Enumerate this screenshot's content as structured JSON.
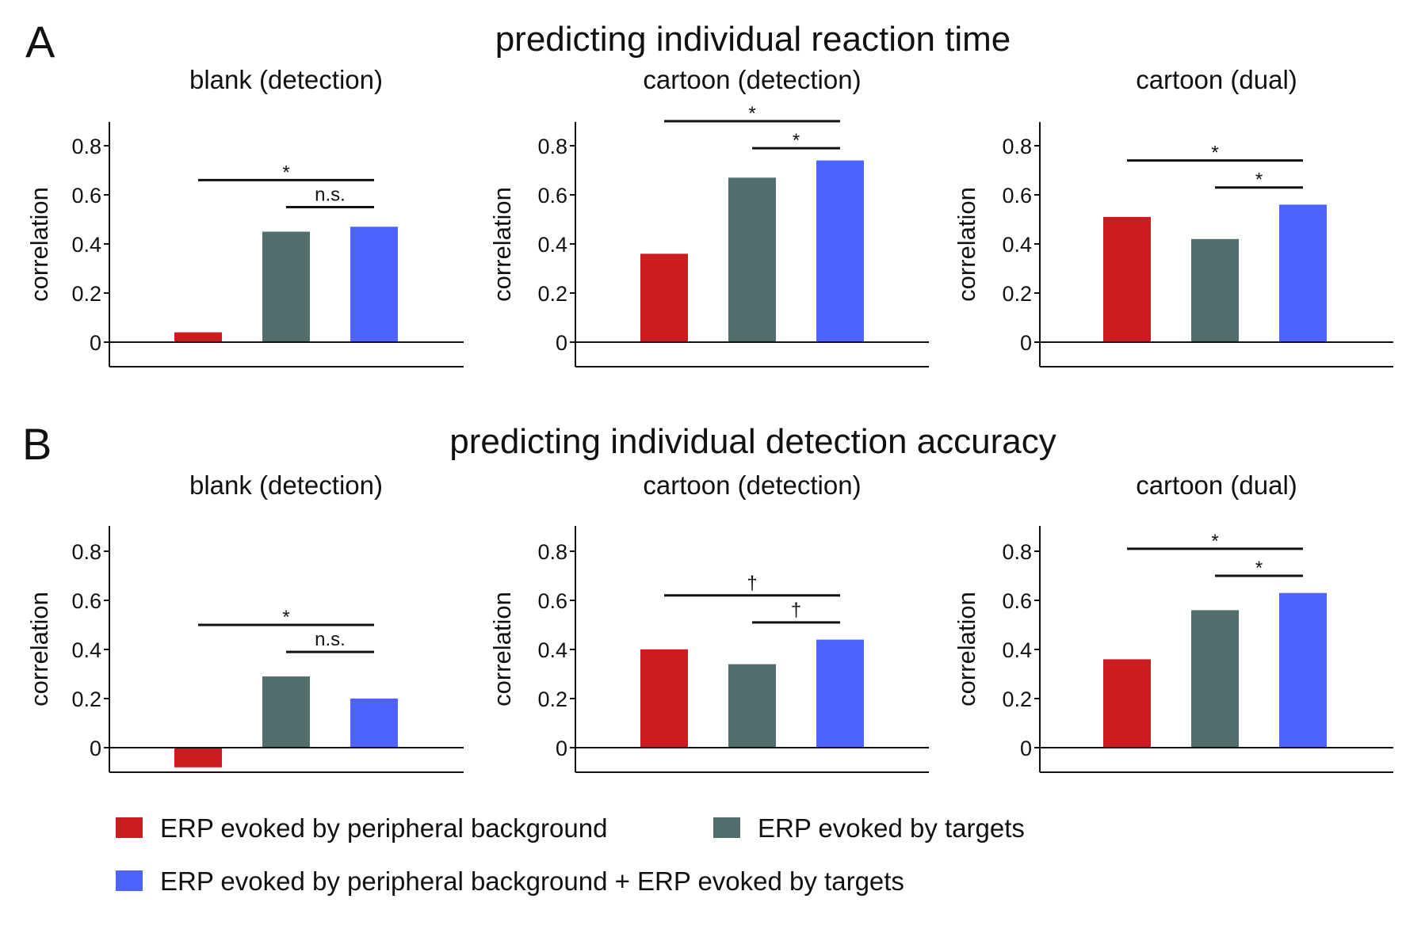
{
  "colors": {
    "peripheral": "#cc1b1e",
    "targets": "#526e6c",
    "combined": "#4d63fb",
    "axis": "#111111"
  },
  "rows": [
    {
      "letter": "A",
      "title": "predicting individual reaction time"
    },
    {
      "letter": "B",
      "title": "predicting individual detection accuracy"
    }
  ],
  "legend": [
    {
      "label": "ERP evoked by peripheral background",
      "color": "#cc1b1e"
    },
    {
      "label": "ERP evoked by targets",
      "color": "#526e6c"
    },
    {
      "label": "ERP evoked by peripheral background + ERP evoked by targets",
      "color": "#4d63fb"
    }
  ],
  "chart_data": [
    {
      "type": "bar",
      "row": 0,
      "title": "blank (detection)",
      "ylabel": "correlation",
      "ylim": [
        -0.1,
        0.9
      ],
      "yticks": [
        "0",
        "0.2",
        "0.4",
        "0.6",
        "0.8"
      ],
      "values": [
        0.04,
        0.45,
        0.47
      ],
      "significance": [
        {
          "from": 0,
          "to": 2,
          "label": "*",
          "y": 0.66
        },
        {
          "from": 1,
          "to": 2,
          "label": "n.s.",
          "y": 0.55
        }
      ]
    },
    {
      "type": "bar",
      "row": 0,
      "title": "cartoon (detection)",
      "ylabel": "correlation",
      "ylim": [
        -0.1,
        0.9
      ],
      "yticks": [
        "0",
        "0.2",
        "0.4",
        "0.6",
        "0.8"
      ],
      "values": [
        0.36,
        0.67,
        0.74
      ],
      "significance": [
        {
          "from": 0,
          "to": 2,
          "label": "*",
          "y": 0.9
        },
        {
          "from": 1,
          "to": 2,
          "label": "*",
          "y": 0.79
        }
      ]
    },
    {
      "type": "bar",
      "row": 0,
      "title": "cartoon (dual)",
      "ylabel": "correlation",
      "ylim": [
        -0.1,
        0.9
      ],
      "yticks": [
        "0",
        "0.2",
        "0.4",
        "0.6",
        "0.8"
      ],
      "values": [
        0.51,
        0.42,
        0.56
      ],
      "significance": [
        {
          "from": 0,
          "to": 2,
          "label": "*",
          "y": 0.74
        },
        {
          "from": 1,
          "to": 2,
          "label": "*",
          "y": 0.63
        }
      ]
    },
    {
      "type": "bar",
      "row": 1,
      "title": "blank (detection)",
      "ylabel": "correlation",
      "ylim": [
        -0.1,
        0.9
      ],
      "yticks": [
        "0",
        "0.2",
        "0.4",
        "0.6",
        "0.8"
      ],
      "values": [
        -0.08,
        0.29,
        0.2
      ],
      "significance": [
        {
          "from": 0,
          "to": 2,
          "label": "*",
          "y": 0.5
        },
        {
          "from": 1,
          "to": 2,
          "label": "n.s.",
          "y": 0.39
        }
      ]
    },
    {
      "type": "bar",
      "row": 1,
      "title": "cartoon (detection)",
      "ylabel": "correlation",
      "ylim": [
        -0.1,
        0.9
      ],
      "yticks": [
        "0",
        "0.2",
        "0.4",
        "0.6",
        "0.8"
      ],
      "values": [
        0.4,
        0.34,
        0.44
      ],
      "significance": [
        {
          "from": 0,
          "to": 2,
          "label": "†",
          "y": 0.62
        },
        {
          "from": 1,
          "to": 2,
          "label": "†",
          "y": 0.51
        }
      ]
    },
    {
      "type": "bar",
      "row": 1,
      "title": "cartoon (dual)",
      "ylabel": "correlation",
      "ylim": [
        -0.1,
        0.9
      ],
      "yticks": [
        "0",
        "0.2",
        "0.4",
        "0.6",
        "0.8"
      ],
      "values": [
        0.36,
        0.56,
        0.63
      ],
      "significance": [
        {
          "from": 0,
          "to": 2,
          "label": "*",
          "y": 0.81
        },
        {
          "from": 1,
          "to": 2,
          "label": "*",
          "y": 0.7
        }
      ]
    }
  ]
}
